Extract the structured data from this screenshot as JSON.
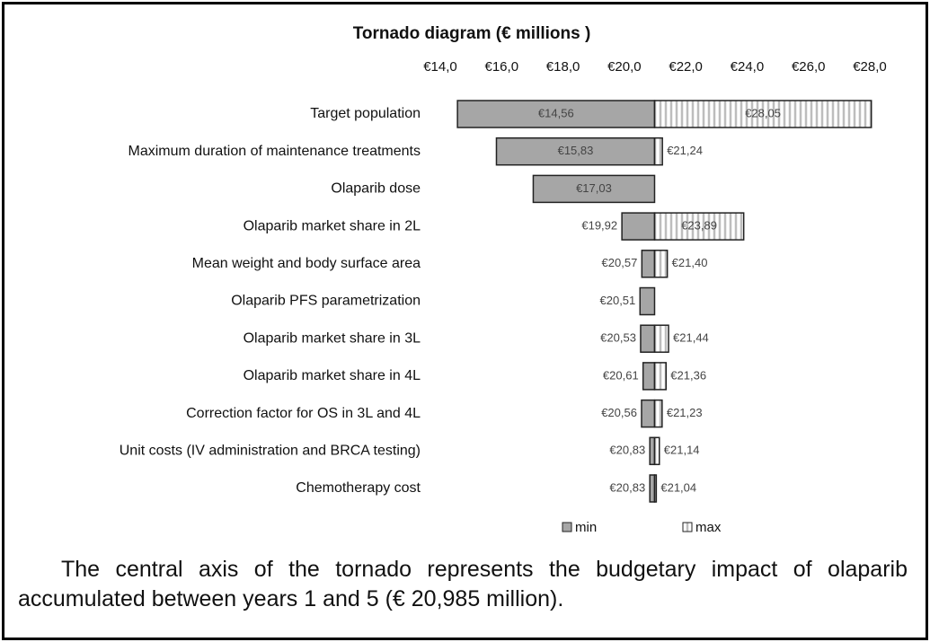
{
  "chart_data": {
    "type": "tornado",
    "title": "Tornado diagram (€ millions )",
    "base": 20.985,
    "categories": [
      "Target population",
      "Maximum duration of maintenance treatments",
      "Olaparib dose",
      "Olaparib market share in 2L",
      "Mean weight and body surface area",
      "Olaparib PFS parametrization",
      "Olaparib market share in 3L",
      "Olaparib market share in 4L",
      "Correction factor for OS in 3L and 4L",
      "Unit costs (IV administration and BRCA testing)",
      "Chemotherapy cost"
    ],
    "series": [
      {
        "name": "min",
        "color": "#a6a6a6",
        "values": [
          14.56,
          15.83,
          17.03,
          19.92,
          20.57,
          20.51,
          20.53,
          20.61,
          20.56,
          20.83,
          20.83
        ],
        "value_labels": [
          "€14,56",
          "€15,83",
          "€17,03",
          "€19,92",
          "€20,57",
          "€20,51",
          "€20,53",
          "€20,61",
          "€20,56",
          "€20,83",
          "€20,83"
        ]
      },
      {
        "name": "max",
        "color": "#bdbdbd",
        "values": [
          28.05,
          21.24,
          null,
          23.89,
          21.4,
          null,
          21.44,
          21.36,
          21.23,
          21.14,
          21.04
        ],
        "value_labels": [
          "€28,05",
          "€21,24",
          null,
          "€23,89",
          "€21,40",
          null,
          "€21,44",
          "€21,36",
          "€21,23",
          "€21,14",
          "€21,04"
        ]
      }
    ],
    "xlim": [
      14.0,
      28.0
    ],
    "xticks": [
      {
        "value": 14,
        "label": "€14,0"
      },
      {
        "value": 16,
        "label": "€16,0"
      },
      {
        "value": 18,
        "label": "€18,0"
      },
      {
        "value": 20,
        "label": "€20,0"
      },
      {
        "value": 22,
        "label": "€22,0"
      },
      {
        "value": 24,
        "label": "€24,0"
      },
      {
        "value": 26,
        "label": "€26,0"
      },
      {
        "value": 28,
        "label": "€28,0"
      }
    ]
  },
  "caption": "The central axis of the tornado represents the budgetary impact of olaparib accumulated between years 1 and 5 (€ 20,985 million)."
}
